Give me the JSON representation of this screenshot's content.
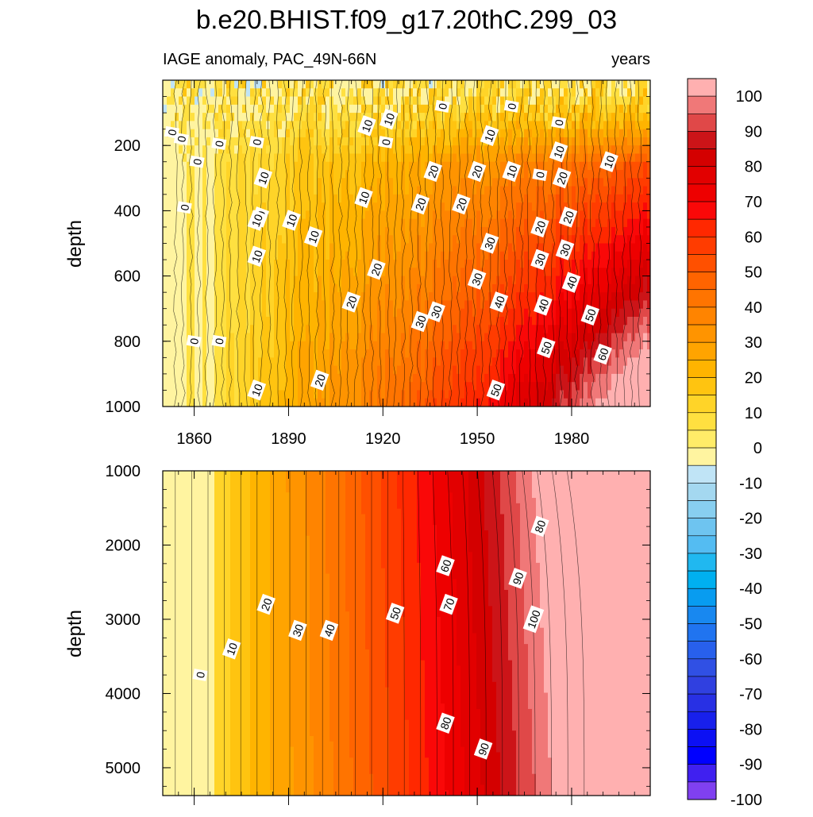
{
  "chart_data": {
    "type": "heatmap",
    "title": "b.e20.BHIST.f09_g17.20thC.299_03",
    "left_subtitle": "IAGE anomaly, PAC_49N-66N",
    "right_subtitle": "years",
    "xlabel": "",
    "ylabel": "depth",
    "x_range": [
      1850,
      2005
    ],
    "x_ticks": [
      1860,
      1890,
      1920,
      1950,
      1980
    ],
    "x_tick_labels": [
      "1860",
      "1890",
      "1920",
      "1950",
      "1980"
    ],
    "panels": [
      {
        "name": "upper",
        "y_range": [
          0,
          1000
        ],
        "y_ticks": [
          200,
          400,
          600,
          800,
          1000
        ],
        "y_tick_labels": [
          "200",
          "400",
          "600",
          "800",
          "1000"
        ],
        "y_reversed": true,
        "contour_labels": [
          {
            "x": 1856,
            "y": 180,
            "text": "0"
          },
          {
            "x": 1861,
            "y": 250,
            "text": "0"
          },
          {
            "x": 1857,
            "y": 390,
            "text": "0"
          },
          {
            "x": 1868,
            "y": 195,
            "text": "0"
          },
          {
            "x": 1880,
            "y": 190,
            "text": "0"
          },
          {
            "x": 1853,
            "y": 160,
            "text": "0"
          },
          {
            "x": 1860,
            "y": 800,
            "text": "0"
          },
          {
            "x": 1868,
            "y": 800,
            "text": "0"
          },
          {
            "x": 1882,
            "y": 300,
            "text": "10"
          },
          {
            "x": 1881,
            "y": 420,
            "text": "10"
          },
          {
            "x": 1880,
            "y": 430,
            "text": "10"
          },
          {
            "x": 1880,
            "y": 540,
            "text": "10"
          },
          {
            "x": 1891,
            "y": 430,
            "text": "10"
          },
          {
            "x": 1898,
            "y": 480,
            "text": "10"
          },
          {
            "x": 1915,
            "y": 140,
            "text": "10"
          },
          {
            "x": 1922,
            "y": 120,
            "text": "10"
          },
          {
            "x": 1921,
            "y": 190,
            "text": "0"
          },
          {
            "x": 1939,
            "y": 80,
            "text": "0"
          },
          {
            "x": 1914,
            "y": 360,
            "text": "10"
          },
          {
            "x": 1880,
            "y": 950,
            "text": "10"
          },
          {
            "x": 1900,
            "y": 920,
            "text": "20"
          },
          {
            "x": 1910,
            "y": 680,
            "text": "20"
          },
          {
            "x": 1918,
            "y": 580,
            "text": "20"
          },
          {
            "x": 1936,
            "y": 280,
            "text": "20"
          },
          {
            "x": 1932,
            "y": 380,
            "text": "20"
          },
          {
            "x": 1945,
            "y": 380,
            "text": "20"
          },
          {
            "x": 1950,
            "y": 280,
            "text": "20"
          },
          {
            "x": 1932,
            "y": 740,
            "text": "30"
          },
          {
            "x": 1937,
            "y": 710,
            "text": "30"
          },
          {
            "x": 1954,
            "y": 170,
            "text": "10"
          },
          {
            "x": 1961,
            "y": 80,
            "text": "0"
          },
          {
            "x": 1961,
            "y": 280,
            "text": "10"
          },
          {
            "x": 1970,
            "y": 290,
            "text": "0"
          },
          {
            "x": 1976,
            "y": 130,
            "text": "0"
          },
          {
            "x": 1976,
            "y": 220,
            "text": "10"
          },
          {
            "x": 1977,
            "y": 300,
            "text": "20"
          },
          {
            "x": 1970,
            "y": 450,
            "text": "20"
          },
          {
            "x": 1979,
            "y": 420,
            "text": "20"
          },
          {
            "x": 1954,
            "y": 500,
            "text": "30"
          },
          {
            "x": 1950,
            "y": 610,
            "text": "30"
          },
          {
            "x": 1970,
            "y": 550,
            "text": "30"
          },
          {
            "x": 1978,
            "y": 520,
            "text": "30"
          },
          {
            "x": 1957,
            "y": 680,
            "text": "40"
          },
          {
            "x": 1971,
            "y": 690,
            "text": "40"
          },
          {
            "x": 1980,
            "y": 620,
            "text": "40"
          },
          {
            "x": 1986,
            "y": 720,
            "text": "50"
          },
          {
            "x": 1972,
            "y": 820,
            "text": "50"
          },
          {
            "x": 1956,
            "y": 950,
            "text": "50"
          },
          {
            "x": 1992,
            "y": 250,
            "text": "10"
          },
          {
            "x": 1990,
            "y": 840,
            "text": "60"
          }
        ]
      },
      {
        "name": "lower",
        "y_range": [
          1000,
          5375
        ],
        "y_ticks": [
          1000,
          2000,
          3000,
          4000,
          5000
        ],
        "y_tick_labels": [
          "1000",
          "2000",
          "3000",
          "4000",
          "5000"
        ],
        "y_reversed": true,
        "contour_labels": [
          {
            "x": 1862,
            "y": 3750,
            "text": "0"
          },
          {
            "x": 1872,
            "y": 3400,
            "text": "10"
          },
          {
            "x": 1883,
            "y": 2800,
            "text": "20"
          },
          {
            "x": 1903,
            "y": 3150,
            "text": "40"
          },
          {
            "x": 1893,
            "y": 3150,
            "text": "30"
          },
          {
            "x": 1924,
            "y": 2920,
            "text": "50"
          },
          {
            "x": 1940,
            "y": 2280,
            "text": "60"
          },
          {
            "x": 1941,
            "y": 2800,
            "text": "70"
          },
          {
            "x": 1970,
            "y": 1750,
            "text": "80"
          },
          {
            "x": 1963,
            "y": 2450,
            "text": "90"
          },
          {
            "x": 1968,
            "y": 3000,
            "text": "100"
          },
          {
            "x": 1940,
            "y": 4400,
            "text": "80"
          },
          {
            "x": 1952,
            "y": 4750,
            "text": "90"
          }
        ]
      }
    ],
    "colorbar": {
      "levels": [
        -100,
        -95,
        -90,
        -85,
        -80,
        -75,
        -70,
        -65,
        -60,
        -55,
        -50,
        -45,
        -40,
        -35,
        -30,
        -25,
        -20,
        -15,
        -10,
        -5,
        0,
        5,
        10,
        15,
        20,
        25,
        30,
        35,
        40,
        45,
        50,
        55,
        60,
        65,
        70,
        75,
        80,
        85,
        90,
        95,
        100
      ],
      "labels": [
        "100",
        "90",
        "80",
        "70",
        "60",
        "50",
        "40",
        "30",
        "20",
        "10",
        "0",
        "-10",
        "-20",
        "-30",
        "-40",
        "-50",
        "-60",
        "-70",
        "-80",
        "-90",
        "-100"
      ],
      "colors_top_to_bottom": [
        "#ffb0b0",
        "#f07878",
        "#e04848",
        "#cc1418",
        "#d40000",
        "#e20000",
        "#ee0000",
        "#fa0808",
        "#ff2800",
        "#ff3c00",
        "#ff5000",
        "#ff6400",
        "#ff7400",
        "#ff8400",
        "#ff9400",
        "#ffa400",
        "#ffb400",
        "#ffc410",
        "#ffd428",
        "#ffe040",
        "#ffec68",
        "#fff4a0",
        "#c0e4f6",
        "#a4d8f0",
        "#88cff0",
        "#6ec4f0",
        "#54bcf2",
        "#20b8f0",
        "#00b0f0",
        "#089cf0",
        "#1888f0",
        "#2074f0",
        "#2860ec",
        "#3050e4",
        "#3040e0",
        "#2830e4",
        "#1820ec",
        "#0c10f4",
        "#0000ff",
        "#4020f0",
        "#8040f0"
      ]
    }
  }
}
